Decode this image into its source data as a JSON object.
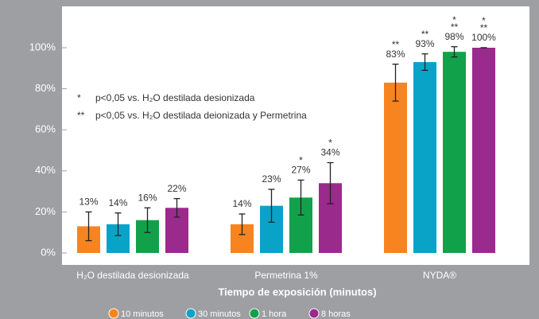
{
  "chart_data": {
    "type": "bar",
    "categories": [
      "H₂O destilada desionizada",
      "Permetrina 1%",
      "NYDA®"
    ],
    "x_label": "Tiempo de exposición (minutos)",
    "ylim": [
      0,
      100
    ],
    "yticks": [
      {
        "value": 0,
        "label": "0%"
      },
      {
        "value": 20,
        "label": "20%"
      },
      {
        "value": 40,
        "label": "40%"
      },
      {
        "value": 60,
        "label": "60%"
      },
      {
        "value": 80,
        "label": "80%"
      },
      {
        "value": 100,
        "label": "100%"
      }
    ],
    "notes": [
      [
        "*",
        "p<0,05 vs. H₂O destilada desionizada"
      ],
      [
        "**",
        "p<0,05 vs. H₂O destilada deionizada y Permetrina"
      ]
    ],
    "series": [
      {
        "name": "10 minutos",
        "color": "#f7841f",
        "values": [
          13,
          14,
          83
        ],
        "value_labels": [
          "13%",
          "14%",
          "83%"
        ],
        "errors": [
          7,
          5,
          9
        ],
        "significance": [
          null,
          null,
          [
            "**"
          ]
        ]
      },
      {
        "name": "30 minutos",
        "color": "#0aa3c8",
        "values": [
          14,
          23,
          93
        ],
        "value_labels": [
          "14%",
          "23%",
          "93%"
        ],
        "errors": [
          5.5,
          8,
          4
        ],
        "significance": [
          null,
          null,
          [
            "**"
          ]
        ]
      },
      {
        "name": "1 hora",
        "color": "#12a14b",
        "values": [
          16,
          27,
          98
        ],
        "value_labels": [
          "16%",
          "27%",
          "98%"
        ],
        "errors": [
          6,
          8.5,
          2.5
        ],
        "significance": [
          null,
          [
            "*"
          ],
          [
            "*",
            "**"
          ]
        ]
      },
      {
        "name": "8 horas",
        "color": "#9b2a8d",
        "values": [
          22,
          34,
          100
        ],
        "value_labels": [
          "22%",
          "34%",
          "100%"
        ],
        "errors": [
          4.5,
          10,
          0
        ],
        "significance": [
          null,
          [
            "*"
          ],
          [
            "*",
            "**"
          ]
        ]
      }
    ]
  }
}
